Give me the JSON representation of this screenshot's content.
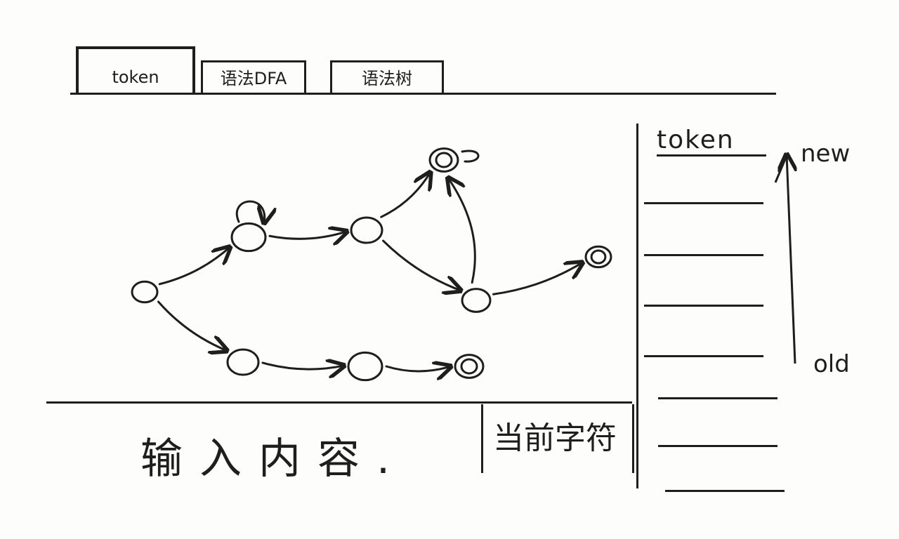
{
  "tabs": [
    {
      "label": "token",
      "active": true
    },
    {
      "label": "语法DFA",
      "active": false
    },
    {
      "label": "语法树",
      "active": false
    }
  ],
  "token_panel": {
    "header": "token",
    "rows": [
      "",
      "",
      "",
      "",
      "",
      "",
      ""
    ],
    "newest_label": "new",
    "oldest_label": "old"
  },
  "input": {
    "placeholder": "输入内容.",
    "value": ""
  },
  "current_char": {
    "label": "当前字符"
  },
  "dfa": {
    "states": [
      "q0",
      "q1",
      "q2",
      "q3",
      "q4",
      "q5",
      "q6",
      "q7",
      "q8"
    ],
    "accept_states": [
      "q3",
      "q5",
      "q8"
    ],
    "transitions": [
      [
        "q0",
        "q1"
      ],
      [
        "q1",
        "q1"
      ],
      [
        "q1",
        "q2"
      ],
      [
        "q2",
        "q3"
      ],
      [
        "q2",
        "q4"
      ],
      [
        "q4",
        "q3"
      ],
      [
        "q3",
        "q3"
      ],
      [
        "q4",
        "q5"
      ],
      [
        "q0",
        "q6"
      ],
      [
        "q6",
        "q7"
      ],
      [
        "q7",
        "q8"
      ]
    ]
  }
}
